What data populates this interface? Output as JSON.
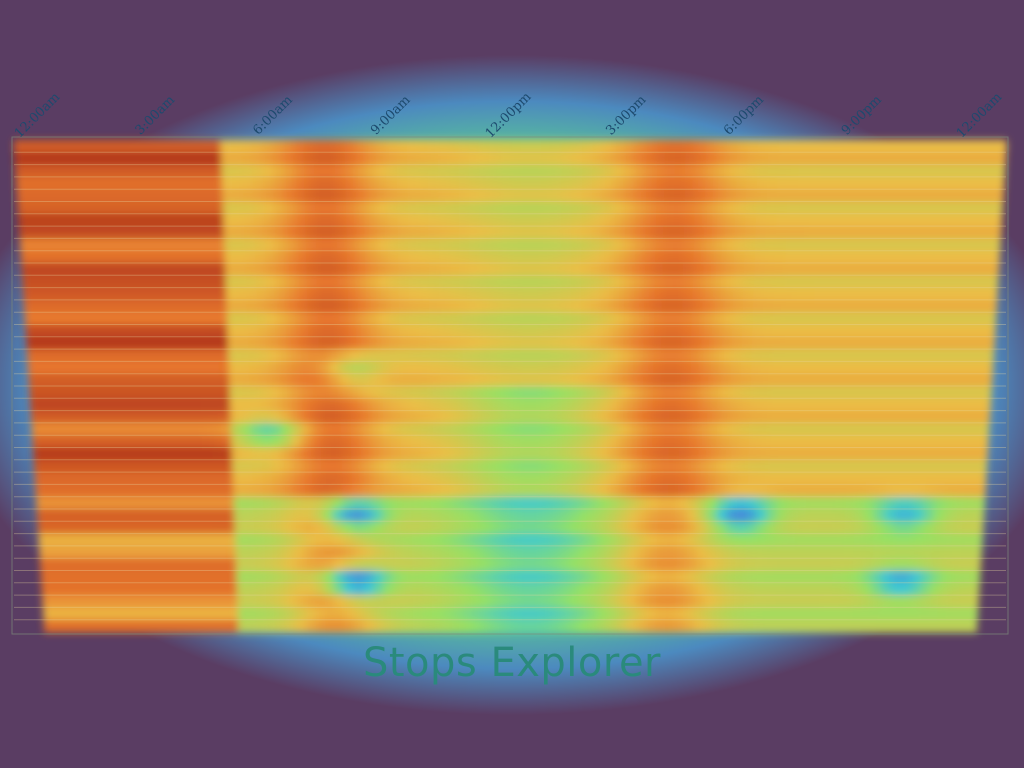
{
  "chart_data": {
    "type": "heatmap",
    "title": "Stops Explorer",
    "x_ticks": [
      "12:00am",
      "3:00am",
      "6:00am",
      "9:00am",
      "12:00pm",
      "3:00pm",
      "6:00pm",
      "9:00pm",
      "12:00am"
    ],
    "x_range_hours": [
      0,
      24
    ],
    "rows": 40,
    "grid": true,
    "colors": {
      "background": "#5a3d63",
      "low": "#4d7fd6",
      "mid": "#9fe06a",
      "high": "#b8361f"
    }
  }
}
